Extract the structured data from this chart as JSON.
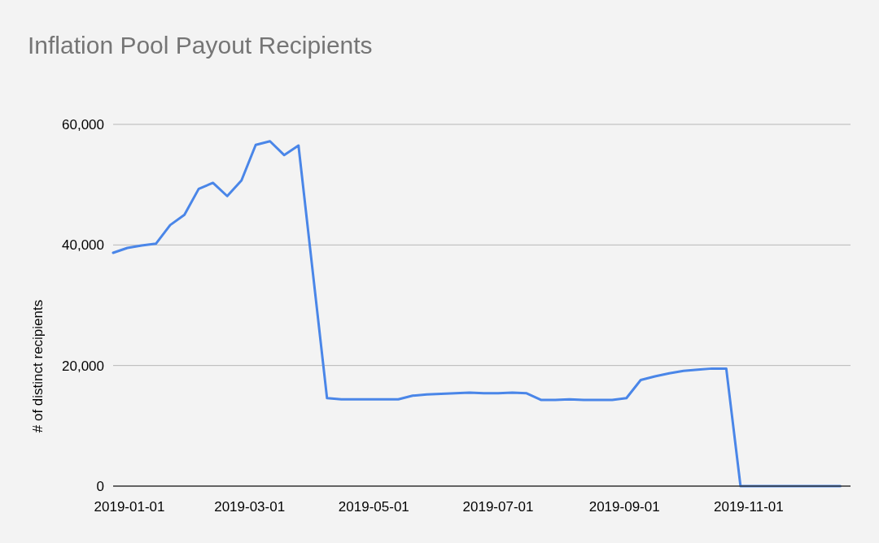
{
  "chart_data": {
    "type": "line",
    "title": "Inflation Pool Payout Recipients",
    "ylabel": "# of distinct recipients",
    "x": [
      "2018-12-24",
      "2018-12-31",
      "2019-01-07",
      "2019-01-14",
      "2019-01-21",
      "2019-01-28",
      "2019-02-04",
      "2019-02-11",
      "2019-02-18",
      "2019-02-25",
      "2019-03-04",
      "2019-03-11",
      "2019-03-18",
      "2019-03-25",
      "2019-04-08",
      "2019-04-15",
      "2019-04-22",
      "2019-04-29",
      "2019-05-06",
      "2019-05-13",
      "2019-05-20",
      "2019-05-27",
      "2019-06-03",
      "2019-06-10",
      "2019-06-17",
      "2019-06-24",
      "2019-07-01",
      "2019-07-08",
      "2019-07-15",
      "2019-07-22",
      "2019-07-29",
      "2019-08-05",
      "2019-08-12",
      "2019-08-19",
      "2019-08-26",
      "2019-09-02",
      "2019-09-09",
      "2019-09-16",
      "2019-09-23",
      "2019-09-30",
      "2019-10-07",
      "2019-10-14",
      "2019-10-21",
      "2019-10-28",
      "2019-11-04",
      "2019-11-11",
      "2019-11-18",
      "2019-11-25",
      "2019-12-02",
      "2019-12-09",
      "2019-12-16"
    ],
    "series": [
      {
        "color": "#4a86e8",
        "values": [
          38700,
          39500,
          39900,
          40200,
          43300,
          45000,
          49300,
          50300,
          48100,
          50700,
          56600,
          57200,
          54900,
          56500,
          14600,
          14400,
          14400,
          14400,
          14400,
          14400,
          15000,
          15200,
          15300,
          15400,
          15500,
          15400,
          15400,
          15500,
          15400,
          14300,
          14300,
          14400,
          14300,
          14300,
          14300,
          14600,
          17600,
          18200,
          18700,
          19100,
          19300,
          19500,
          19500,
          0,
          0,
          0,
          0,
          0,
          0,
          0,
          0
        ]
      }
    ],
    "xlim": [
      "2018-12-24",
      "2019-12-21"
    ],
    "xticks": [
      "2019-01-01",
      "2019-03-01",
      "2019-05-01",
      "2019-07-01",
      "2019-09-01",
      "2019-11-01"
    ],
    "ylim": [
      0,
      60000
    ],
    "yticks": [
      {
        "value": 0,
        "label": "0"
      },
      {
        "value": 20000,
        "label": "20,000"
      },
      {
        "value": 40000,
        "label": "40,000"
      },
      {
        "value": 60000,
        "label": "60,000"
      }
    ],
    "grid": "y",
    "marker": "none",
    "line_style": "solid"
  }
}
